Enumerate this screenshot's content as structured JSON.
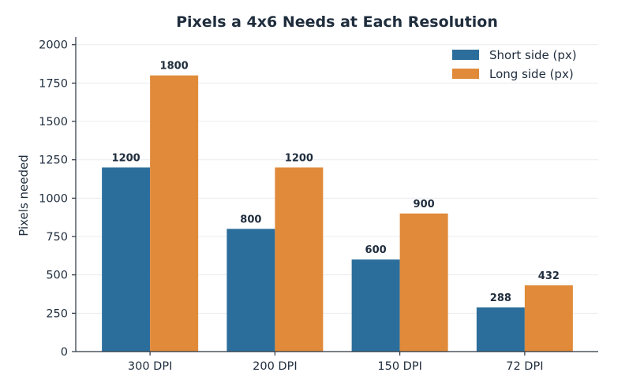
{
  "chart_data": {
    "type": "bar",
    "title": "Pixels a 4x6 Needs at Each Resolution",
    "xlabel": "",
    "ylabel": "Pixels needed",
    "categories": [
      "300 DPI",
      "200 DPI",
      "150 DPI",
      "72 DPI"
    ],
    "series": [
      {
        "name": "Short side (px)",
        "values": [
          1200,
          800,
          600,
          288
        ],
        "color": "#2c6e9b"
      },
      {
        "name": "Long side (px)",
        "values": [
          1800,
          1200,
          900,
          432
        ],
        "color": "#e08a3a"
      }
    ],
    "ylim": [
      0,
      2050
    ],
    "yticks": [
      0,
      250,
      500,
      750,
      1000,
      1250,
      1500,
      1750,
      2000
    ],
    "grid": true,
    "legend_position": "top-right",
    "data_labels": true
  }
}
